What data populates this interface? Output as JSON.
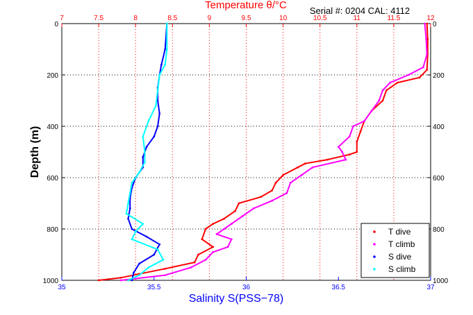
{
  "chart_data": {
    "type": "scatter",
    "title": "",
    "serial_text": "Serial #: 0204  CAL: 4112",
    "top_axis": {
      "label": "Temperature θ/°C",
      "range": [
        7,
        12
      ],
      "ticks": [
        "7",
        "7.5",
        "8",
        "8.5",
        "9",
        "9.5",
        "10",
        "10.5",
        "11",
        "11.5",
        "12"
      ],
      "color": "#ff0000"
    },
    "bottom_axis": {
      "label": "Salinity S(PSS−78)",
      "range": [
        35,
        37
      ],
      "ticks": [
        "35",
        "35.5",
        "36",
        "36.5",
        "37"
      ],
      "color": "#0000ff"
    },
    "y_axis": {
      "label": "Depth (m)",
      "range": [
        0,
        1000
      ],
      "inverted": true,
      "ticks": [
        "0",
        "200",
        "400",
        "600",
        "800",
        "1000"
      ],
      "grid": true
    },
    "legend": {
      "placement": "bottom-right"
    },
    "series": [
      {
        "name": "T dive",
        "axis": "temperature",
        "color": "#ff0000",
        "points": [
          [
            11.95,
            0
          ],
          [
            11.96,
            60
          ],
          [
            11.96,
            120
          ],
          [
            11.95,
            180
          ],
          [
            11.85,
            210
          ],
          [
            11.55,
            230
          ],
          [
            11.4,
            260
          ],
          [
            11.35,
            300
          ],
          [
            11.2,
            340
          ],
          [
            11.1,
            380
          ],
          [
            11.05,
            420
          ],
          [
            11.0,
            460
          ],
          [
            11.0,
            500
          ],
          [
            10.9,
            510
          ],
          [
            10.6,
            530
          ],
          [
            10.3,
            545
          ],
          [
            10.2,
            560
          ],
          [
            10.0,
            590
          ],
          [
            9.9,
            620
          ],
          [
            9.85,
            650
          ],
          [
            9.7,
            675
          ],
          [
            9.4,
            700
          ],
          [
            9.35,
            730
          ],
          [
            9.2,
            760
          ],
          [
            9.05,
            780
          ],
          [
            8.95,
            800
          ],
          [
            8.9,
            840
          ],
          [
            9.05,
            870
          ],
          [
            8.85,
            900
          ],
          [
            8.8,
            930
          ],
          [
            8.4,
            955
          ],
          [
            8.05,
            975
          ],
          [
            7.8,
            990
          ],
          [
            7.5,
            1000
          ]
        ]
      },
      {
        "name": "T climb",
        "axis": "temperature",
        "color": "#ff00ff",
        "points": [
          [
            11.92,
            0
          ],
          [
            11.94,
            60
          ],
          [
            11.95,
            120
          ],
          [
            11.9,
            170
          ],
          [
            11.7,
            200
          ],
          [
            11.45,
            230
          ],
          [
            11.35,
            260
          ],
          [
            11.3,
            300
          ],
          [
            11.2,
            340
          ],
          [
            11.1,
            380
          ],
          [
            10.95,
            400
          ],
          [
            10.9,
            440
          ],
          [
            10.75,
            480
          ],
          [
            10.8,
            500
          ],
          [
            10.85,
            530
          ],
          [
            10.4,
            560
          ],
          [
            10.25,
            590
          ],
          [
            10.1,
            620
          ],
          [
            10.05,
            660
          ],
          [
            9.85,
            690
          ],
          [
            9.6,
            720
          ],
          [
            9.45,
            750
          ],
          [
            9.3,
            780
          ],
          [
            9.2,
            800
          ],
          [
            9.1,
            820
          ],
          [
            9.3,
            840
          ],
          [
            9.25,
            870
          ],
          [
            9.05,
            890
          ],
          [
            8.95,
            920
          ],
          [
            8.75,
            950
          ],
          [
            8.4,
            980
          ],
          [
            7.95,
            995
          ],
          [
            7.8,
            1000
          ]
        ]
      },
      {
        "name": "S dive",
        "axis": "salinity",
        "color": "#0000ff",
        "points": [
          [
            35.57,
            0
          ],
          [
            35.56,
            100
          ],
          [
            35.54,
            160
          ],
          [
            35.53,
            200
          ],
          [
            35.52,
            250
          ],
          [
            35.52,
            300
          ],
          [
            35.53,
            350
          ],
          [
            35.52,
            400
          ],
          [
            35.5,
            440
          ],
          [
            35.46,
            480
          ],
          [
            35.44,
            520
          ],
          [
            35.44,
            560
          ],
          [
            35.4,
            600
          ],
          [
            35.38,
            640
          ],
          [
            35.37,
            680
          ],
          [
            35.37,
            720
          ],
          [
            35.36,
            760
          ],
          [
            35.38,
            800
          ],
          [
            35.46,
            830
          ],
          [
            35.53,
            860
          ],
          [
            35.5,
            900
          ],
          [
            35.42,
            935
          ],
          [
            35.39,
            970
          ],
          [
            35.38,
            1000
          ]
        ]
      },
      {
        "name": "S climb",
        "axis": "salinity",
        "color": "#00ffff",
        "points": [
          [
            35.57,
            0
          ],
          [
            35.57,
            100
          ],
          [
            35.56,
            160
          ],
          [
            35.53,
            200
          ],
          [
            35.52,
            260
          ],
          [
            35.51,
            320
          ],
          [
            35.47,
            380
          ],
          [
            35.44,
            440
          ],
          [
            35.45,
            500
          ],
          [
            35.45,
            540
          ],
          [
            35.42,
            580
          ],
          [
            35.38,
            620
          ],
          [
            35.37,
            660
          ],
          [
            35.36,
            700
          ],
          [
            35.35,
            740
          ],
          [
            35.44,
            780
          ],
          [
            35.4,
            810
          ],
          [
            35.38,
            840
          ],
          [
            35.52,
            880
          ],
          [
            35.55,
            920
          ],
          [
            35.47,
            950
          ],
          [
            35.42,
            980
          ],
          [
            35.36,
            1000
          ]
        ]
      }
    ]
  }
}
